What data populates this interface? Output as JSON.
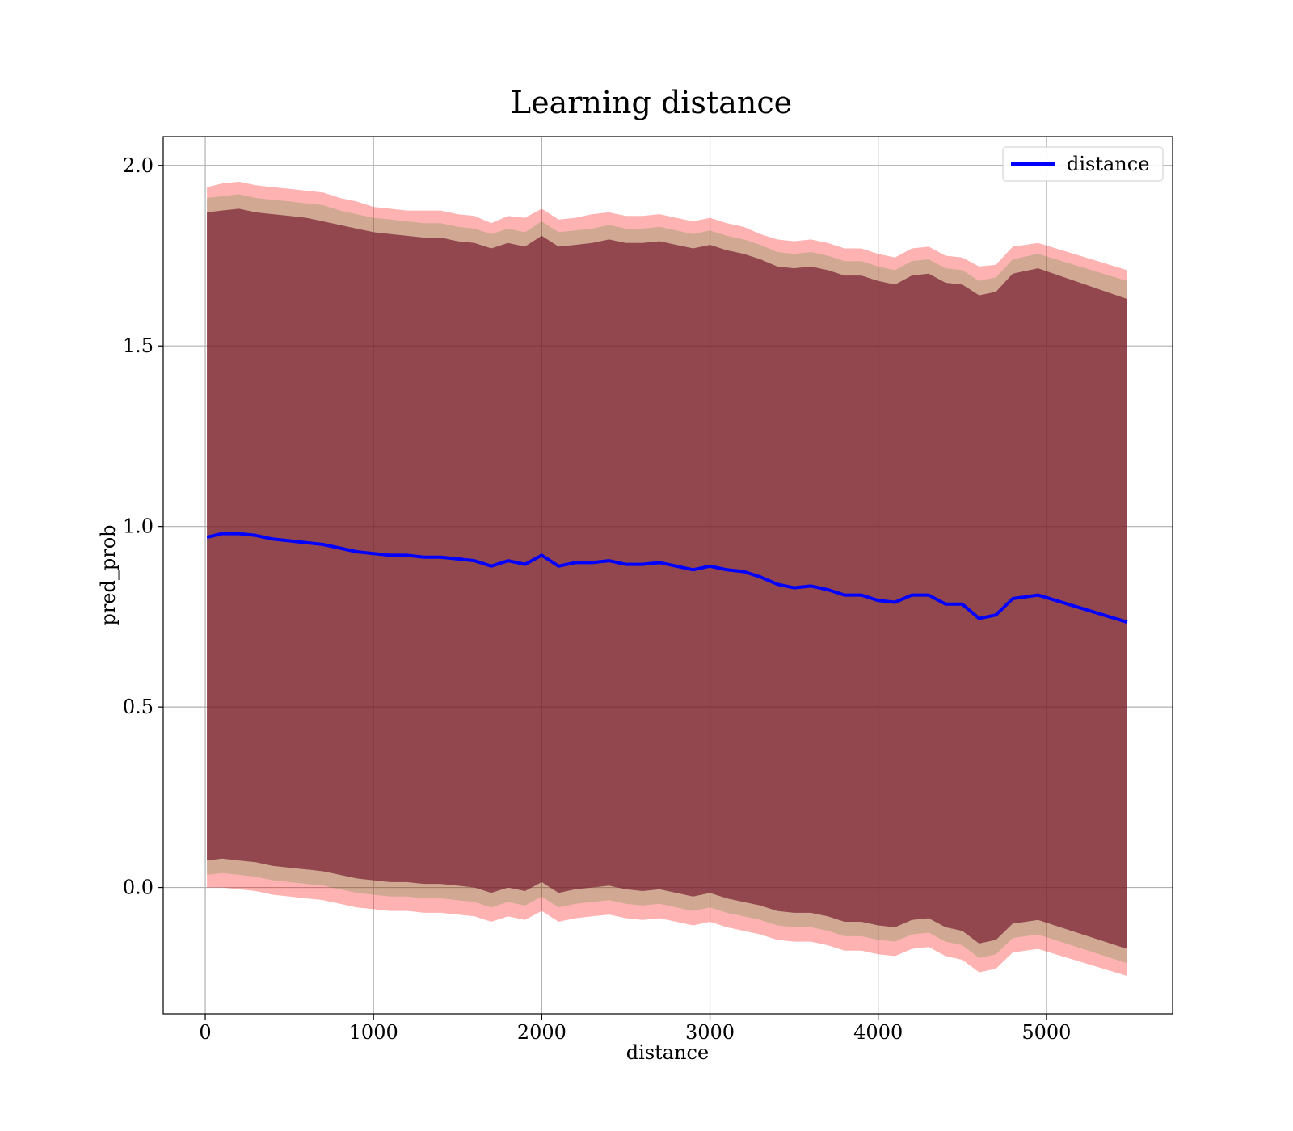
{
  "chart_data": {
    "type": "line",
    "title": "Learning distance",
    "xlabel": "distance",
    "ylabel": "pred_prob",
    "xlim": [
      -250,
      5750
    ],
    "ylim": [
      -0.35,
      2.08
    ],
    "xticks": [
      0,
      1000,
      2000,
      3000,
      4000,
      5000
    ],
    "xtick_labels": [
      "0",
      "1000",
      "2000",
      "3000",
      "4000",
      "5000"
    ],
    "yticks": [
      0.0,
      0.5,
      1.0,
      1.5,
      2.0
    ],
    "ytick_labels": [
      "0.0",
      "0.5",
      "1.0",
      "1.5",
      "2.0"
    ],
    "grid": true,
    "legend": {
      "position": "upper-right",
      "entries": [
        "distance"
      ]
    },
    "x": [
      10,
      100,
      200,
      300,
      400,
      500,
      600,
      700,
      800,
      900,
      1000,
      1100,
      1200,
      1300,
      1400,
      1500,
      1600,
      1700,
      1800,
      1900,
      2000,
      2100,
      2200,
      2300,
      2400,
      2500,
      2600,
      2700,
      2800,
      2900,
      3000,
      3100,
      3200,
      3300,
      3400,
      3500,
      3600,
      3700,
      3800,
      3900,
      4000,
      4100,
      4200,
      4300,
      4400,
      4500,
      4600,
      4700,
      4800,
      4950,
      5480
    ],
    "series": [
      {
        "name": "distance",
        "color": "#0000ff",
        "values": [
          0.97,
          0.98,
          0.98,
          0.975,
          0.965,
          0.96,
          0.955,
          0.95,
          0.94,
          0.93,
          0.925,
          0.92,
          0.92,
          0.915,
          0.915,
          0.91,
          0.905,
          0.89,
          0.905,
          0.895,
          0.92,
          0.89,
          0.9,
          0.9,
          0.905,
          0.895,
          0.895,
          0.9,
          0.89,
          0.88,
          0.89,
          0.88,
          0.875,
          0.86,
          0.84,
          0.83,
          0.835,
          0.825,
          0.81,
          0.81,
          0.795,
          0.79,
          0.81,
          0.81,
          0.785,
          0.785,
          0.745,
          0.755,
          0.8,
          0.81,
          0.735
        ]
      }
    ],
    "bands": [
      {
        "color": "#ff0000",
        "opacity": 0.3,
        "upper": [
          1.94,
          1.95,
          1.955,
          1.945,
          1.94,
          1.935,
          1.93,
          1.925,
          1.91,
          1.9,
          1.885,
          1.88,
          1.875,
          1.875,
          1.875,
          1.865,
          1.86,
          1.84,
          1.86,
          1.855,
          1.88,
          1.85,
          1.855,
          1.865,
          1.87,
          1.86,
          1.86,
          1.865,
          1.855,
          1.845,
          1.855,
          1.84,
          1.83,
          1.81,
          1.795,
          1.79,
          1.795,
          1.785,
          1.77,
          1.77,
          1.755,
          1.745,
          1.77,
          1.775,
          1.75,
          1.745,
          1.72,
          1.725,
          1.775,
          1.785,
          1.71
        ],
        "lower": [
          0.0,
          0.0,
          -0.005,
          -0.01,
          -0.02,
          -0.025,
          -0.03,
          -0.035,
          -0.045,
          -0.055,
          -0.06,
          -0.065,
          -0.065,
          -0.07,
          -0.07,
          -0.075,
          -0.08,
          -0.095,
          -0.08,
          -0.09,
          -0.065,
          -0.095,
          -0.085,
          -0.08,
          -0.075,
          -0.085,
          -0.09,
          -0.085,
          -0.095,
          -0.105,
          -0.095,
          -0.11,
          -0.12,
          -0.13,
          -0.145,
          -0.15,
          -0.15,
          -0.16,
          -0.175,
          -0.175,
          -0.185,
          -0.19,
          -0.17,
          -0.165,
          -0.19,
          -0.2,
          -0.235,
          -0.225,
          -0.18,
          -0.17,
          -0.245
        ]
      },
      {
        "color": "#008000",
        "opacity": 0.18,
        "upper": [
          1.91,
          1.915,
          1.92,
          1.91,
          1.905,
          1.9,
          1.895,
          1.89,
          1.875,
          1.865,
          1.855,
          1.85,
          1.845,
          1.84,
          1.84,
          1.83,
          1.825,
          1.81,
          1.825,
          1.815,
          1.845,
          1.815,
          1.82,
          1.825,
          1.835,
          1.825,
          1.825,
          1.83,
          1.82,
          1.81,
          1.82,
          1.805,
          1.795,
          1.78,
          1.76,
          1.755,
          1.76,
          1.75,
          1.735,
          1.735,
          1.72,
          1.71,
          1.735,
          1.74,
          1.715,
          1.71,
          1.68,
          1.69,
          1.74,
          1.755,
          1.68
        ],
        "lower": [
          0.035,
          0.04,
          0.035,
          0.03,
          0.02,
          0.015,
          0.01,
          0.005,
          -0.005,
          -0.015,
          -0.02,
          -0.025,
          -0.025,
          -0.03,
          -0.03,
          -0.035,
          -0.04,
          -0.055,
          -0.04,
          -0.05,
          -0.025,
          -0.055,
          -0.045,
          -0.04,
          -0.035,
          -0.045,
          -0.05,
          -0.045,
          -0.055,
          -0.065,
          -0.055,
          -0.07,
          -0.08,
          -0.09,
          -0.105,
          -0.11,
          -0.11,
          -0.12,
          -0.135,
          -0.135,
          -0.145,
          -0.15,
          -0.13,
          -0.125,
          -0.15,
          -0.16,
          -0.195,
          -0.185,
          -0.14,
          -0.13,
          -0.21
        ]
      },
      {
        "color": "#1f1f8f",
        "opacity": 0.3,
        "upper": [
          1.87,
          1.875,
          1.88,
          1.87,
          1.865,
          1.86,
          1.855,
          1.845,
          1.835,
          1.825,
          1.815,
          1.81,
          1.805,
          1.8,
          1.8,
          1.79,
          1.785,
          1.77,
          1.785,
          1.775,
          1.805,
          1.775,
          1.78,
          1.785,
          1.795,
          1.785,
          1.785,
          1.79,
          1.78,
          1.77,
          1.78,
          1.765,
          1.755,
          1.74,
          1.72,
          1.715,
          1.72,
          1.71,
          1.695,
          1.695,
          1.68,
          1.67,
          1.695,
          1.7,
          1.675,
          1.67,
          1.64,
          1.65,
          1.7,
          1.715,
          1.63
        ],
        "lower": [
          0.075,
          0.08,
          0.075,
          0.07,
          0.06,
          0.055,
          0.05,
          0.045,
          0.035,
          0.025,
          0.02,
          0.015,
          0.015,
          0.01,
          0.01,
          0.005,
          0.0,
          -0.015,
          0.0,
          -0.01,
          0.015,
          -0.015,
          -0.005,
          0.0,
          0.005,
          -0.005,
          -0.01,
          -0.005,
          -0.015,
          -0.025,
          -0.015,
          -0.03,
          -0.04,
          -0.05,
          -0.065,
          -0.07,
          -0.07,
          -0.08,
          -0.095,
          -0.095,
          -0.105,
          -0.11,
          -0.09,
          -0.085,
          -0.11,
          -0.12,
          -0.155,
          -0.145,
          -0.1,
          -0.09,
          -0.17
        ]
      },
      {
        "color": "#8b1a1a",
        "opacity": 0.55,
        "upper": [
          1.87,
          1.875,
          1.88,
          1.87,
          1.865,
          1.86,
          1.855,
          1.845,
          1.835,
          1.825,
          1.815,
          1.81,
          1.805,
          1.8,
          1.8,
          1.79,
          1.785,
          1.77,
          1.785,
          1.775,
          1.805,
          1.775,
          1.78,
          1.785,
          1.795,
          1.785,
          1.785,
          1.79,
          1.78,
          1.77,
          1.78,
          1.765,
          1.755,
          1.74,
          1.72,
          1.715,
          1.72,
          1.71,
          1.695,
          1.695,
          1.68,
          1.67,
          1.695,
          1.7,
          1.675,
          1.67,
          1.64,
          1.65,
          1.7,
          1.715,
          1.63
        ],
        "lower": [
          0.075,
          0.08,
          0.075,
          0.07,
          0.06,
          0.055,
          0.05,
          0.045,
          0.035,
          0.025,
          0.02,
          0.015,
          0.015,
          0.01,
          0.01,
          0.005,
          0.0,
          -0.015,
          0.0,
          -0.01,
          0.015,
          -0.015,
          -0.005,
          0.0,
          0.005,
          -0.005,
          -0.01,
          -0.005,
          -0.015,
          -0.025,
          -0.015,
          -0.03,
          -0.04,
          -0.05,
          -0.065,
          -0.07,
          -0.07,
          -0.08,
          -0.095,
          -0.095,
          -0.105,
          -0.11,
          -0.09,
          -0.085,
          -0.11,
          -0.12,
          -0.155,
          -0.145,
          -0.1,
          -0.09,
          -0.17
        ]
      }
    ]
  }
}
